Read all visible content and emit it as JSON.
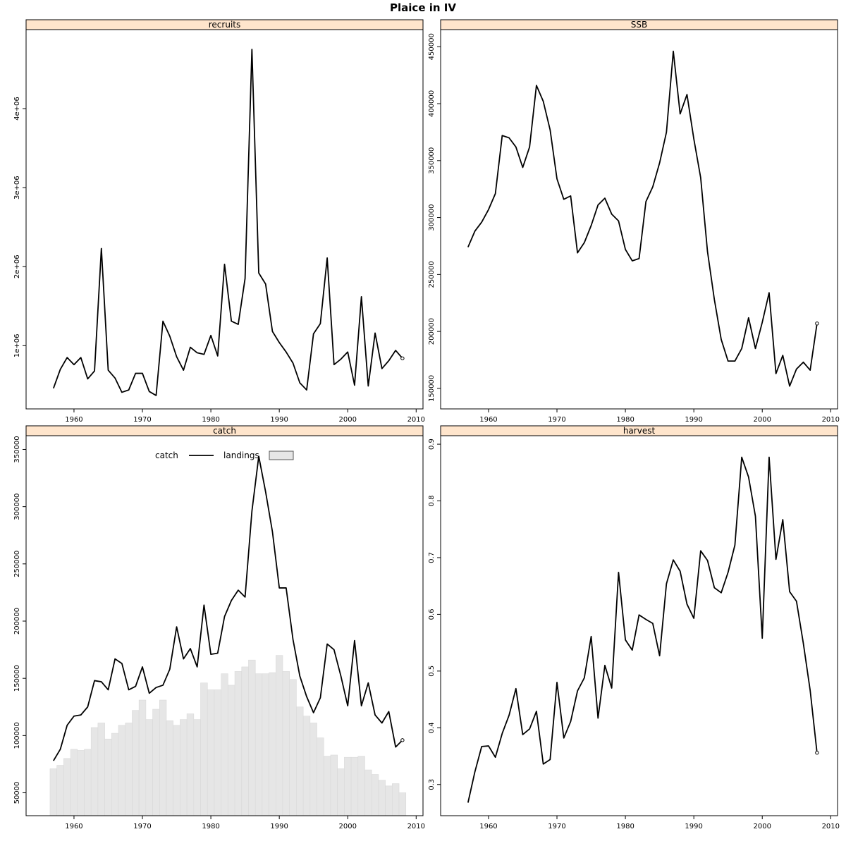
{
  "title": "Plaice in IV",
  "colors": {
    "strip": "#ffe5cc",
    "line": "#000000",
    "bar_fill": "#e6e6e6",
    "bar_stroke": "#d9d9d9"
  },
  "chart_data": [
    {
      "id": "recruits",
      "type": "line",
      "panel_title": "recruits",
      "x": [
        1957,
        1958,
        1959,
        1960,
        1961,
        1962,
        1963,
        1964,
        1965,
        1966,
        1967,
        1968,
        1969,
        1970,
        1971,
        1972,
        1973,
        1974,
        1975,
        1976,
        1977,
        1978,
        1979,
        1980,
        1981,
        1982,
        1983,
        1984,
        1985,
        1986,
        1987,
        1988,
        1989,
        1990,
        1991,
        1992,
        1993,
        1994,
        1995,
        1996,
        1997,
        1998,
        1999,
        2000,
        2001,
        2002,
        2003,
        2004,
        2005,
        2006,
        2007,
        2008
      ],
      "series": [
        {
          "values": [
            460000,
            700000,
            850000,
            760000,
            850000,
            580000,
            680000,
            2230000,
            690000,
            590000,
            410000,
            440000,
            650000,
            650000,
            420000,
            370000,
            1310000,
            1120000,
            860000,
            690000,
            980000,
            910000,
            890000,
            1130000,
            870000,
            2030000,
            1310000,
            1270000,
            1850000,
            4750000,
            1920000,
            1780000,
            1180000,
            1040000,
            920000,
            780000,
            530000,
            440000,
            1150000,
            1280000,
            2110000,
            760000,
            830000,
            920000,
            500000,
            1620000,
            490000,
            1160000,
            710000,
            810000,
            940000,
            840000
          ]
        }
      ],
      "xlim": [
        1953,
        2011
      ],
      "ylim": [
        200000,
        5000000
      ],
      "x_ticks": [
        1960,
        1970,
        1980,
        1990,
        2000,
        2010
      ],
      "y_ticks": [
        1000000,
        2000000,
        3000000,
        4000000
      ],
      "y_tick_labels": [
        "1e+06",
        "2e+06",
        "3e+06",
        "4e+06"
      ]
    },
    {
      "id": "ssb",
      "type": "line",
      "panel_title": "SSB",
      "x": [
        1957,
        1958,
        1959,
        1960,
        1961,
        1962,
        1963,
        1964,
        1965,
        1966,
        1967,
        1968,
        1969,
        1970,
        1971,
        1972,
        1973,
        1974,
        1975,
        1976,
        1977,
        1978,
        1979,
        1980,
        1981,
        1982,
        1983,
        1984,
        1985,
        1986,
        1987,
        1988,
        1989,
        1990,
        1991,
        1992,
        1993,
        1994,
        1995,
        1996,
        1997,
        1998,
        1999,
        2000,
        2001,
        2002,
        2003,
        2004,
        2005,
        2006,
        2007,
        2008
      ],
      "series": [
        {
          "values": [
            274000,
            288000,
            296000,
            307000,
            321000,
            372000,
            370000,
            362000,
            344000,
            362000,
            416000,
            402000,
            377000,
            334000,
            316000,
            319000,
            269000,
            278000,
            293000,
            311000,
            317000,
            303000,
            297000,
            272000,
            262000,
            264000,
            314000,
            327000,
            348000,
            375000,
            446000,
            391000,
            408000,
            369000,
            335000,
            270000,
            228000,
            193000,
            174000,
            174000,
            185000,
            212000,
            185000,
            208000,
            234000,
            163000,
            179000,
            152000,
            167000,
            173000,
            166000,
            207000
          ]
        }
      ],
      "xlim": [
        1953,
        2011
      ],
      "ylim": [
        132000,
        465000
      ],
      "x_ticks": [
        1960,
        1970,
        1980,
        1990,
        2000,
        2010
      ],
      "y_ticks": [
        150000,
        200000,
        250000,
        300000,
        350000,
        400000,
        450000
      ],
      "y_tick_labels": [
        "150000",
        "200000",
        "250000",
        "300000",
        "350000",
        "400000",
        "450000"
      ]
    },
    {
      "id": "catch",
      "type": "line",
      "panel_title": "catch",
      "legend": {
        "position": "top-left",
        "items": [
          "catch",
          "landings"
        ]
      },
      "x": [
        1957,
        1958,
        1959,
        1960,
        1961,
        1962,
        1963,
        1964,
        1965,
        1966,
        1967,
        1968,
        1969,
        1970,
        1971,
        1972,
        1973,
        1974,
        1975,
        1976,
        1977,
        1978,
        1979,
        1980,
        1981,
        1982,
        1983,
        1984,
        1985,
        1986,
        1987,
        1988,
        1989,
        1990,
        1991,
        1992,
        1993,
        1994,
        1995,
        1996,
        1997,
        1998,
        1999,
        2000,
        2001,
        2002,
        2003,
        2004,
        2005,
        2006,
        2007,
        2008
      ],
      "series": [
        {
          "name": "catch",
          "kind": "line",
          "values": [
            78000,
            88000,
            109000,
            117000,
            118000,
            125000,
            148000,
            147000,
            140000,
            167000,
            163000,
            140000,
            143000,
            160000,
            137000,
            142000,
            144000,
            158000,
            195000,
            167000,
            176000,
            160000,
            214000,
            171000,
            172000,
            204000,
            218000,
            227000,
            221000,
            296000,
            344000,
            313000,
            278000,
            229000,
            229000,
            184000,
            152000,
            134000,
            120000,
            133000,
            180000,
            175000,
            152000,
            126000,
            183000,
            126000,
            146000,
            118000,
            111000,
            121000,
            90000,
            96000
          ]
        },
        {
          "name": "landings",
          "kind": "bar",
          "values": [
            71000,
            74000,
            80000,
            88000,
            87000,
            88000,
            107000,
            111000,
            97000,
            102000,
            109000,
            111000,
            122000,
            131000,
            114000,
            123000,
            131000,
            113000,
            109000,
            114000,
            119000,
            114000,
            146000,
            140000,
            140000,
            154000,
            144000,
            156000,
            160000,
            166000,
            154000,
            154000,
            155000,
            170000,
            156000,
            149000,
            125000,
            117000,
            111000,
            98000,
            82000,
            83000,
            71000,
            81000,
            81000,
            82000,
            70000,
            66000,
            61000,
            56000,
            58000,
            50000
          ]
        }
      ],
      "xlim": [
        1953,
        2011
      ],
      "ylim": [
        30000,
        362000
      ],
      "x_ticks": [
        1960,
        1970,
        1980,
        1990,
        2000,
        2010
      ],
      "y_ticks": [
        50000,
        100000,
        150000,
        200000,
        250000,
        300000,
        350000
      ],
      "y_tick_labels": [
        "50000",
        "100000",
        "150000",
        "200000",
        "250000",
        "300000",
        "350000"
      ]
    },
    {
      "id": "harvest",
      "type": "line",
      "panel_title": "harvest",
      "x": [
        1957,
        1958,
        1959,
        1960,
        1961,
        1962,
        1963,
        1964,
        1965,
        1966,
        1967,
        1968,
        1969,
        1970,
        1971,
        1972,
        1973,
        1974,
        1975,
        1976,
        1977,
        1978,
        1979,
        1980,
        1981,
        1982,
        1983,
        1984,
        1985,
        1986,
        1987,
        1988,
        1989,
        1990,
        1991,
        1992,
        1993,
        1994,
        1995,
        1996,
        1997,
        1998,
        1999,
        2000,
        2001,
        2002,
        2003,
        2004,
        2005,
        2006,
        2007,
        2008
      ],
      "series": [
        {
          "values": [
            0.268,
            0.322,
            0.367,
            0.368,
            0.348,
            0.39,
            0.422,
            0.469,
            0.388,
            0.398,
            0.429,
            0.336,
            0.344,
            0.48,
            0.382,
            0.411,
            0.465,
            0.488,
            0.561,
            0.417,
            0.51,
            0.47,
            0.674,
            0.555,
            0.537,
            0.599,
            0.591,
            0.584,
            0.527,
            0.654,
            0.696,
            0.676,
            0.618,
            0.593,
            0.712,
            0.695,
            0.647,
            0.638,
            0.674,
            0.722,
            0.877,
            0.842,
            0.773,
            0.558,
            0.877,
            0.697,
            0.767,
            0.64,
            0.623,
            0.549,
            0.466,
            0.356
          ]
        }
      ],
      "xlim": [
        1953,
        2011
      ],
      "ylim": [
        0.245,
        0.915
      ],
      "x_ticks": [
        1960,
        1970,
        1980,
        1990,
        2000,
        2010
      ],
      "y_ticks": [
        0.3,
        0.4,
        0.5,
        0.6,
        0.7,
        0.8,
        0.9
      ],
      "y_tick_labels": [
        "0.3",
        "0.4",
        "0.5",
        "0.6",
        "0.7",
        "0.8",
        "0.9"
      ]
    }
  ]
}
